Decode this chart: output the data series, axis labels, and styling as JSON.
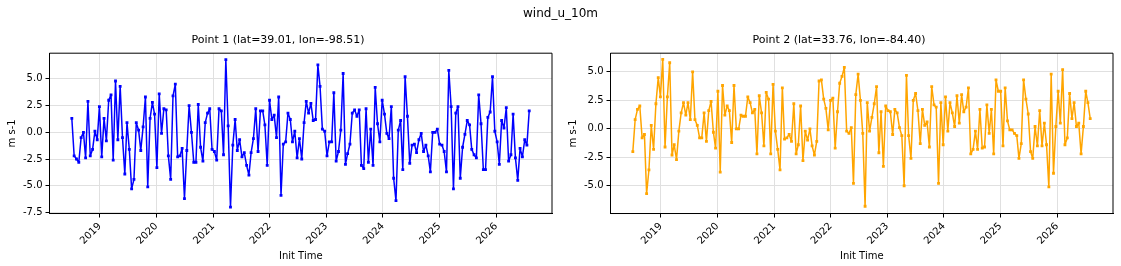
{
  "chart_data": [
    {
      "type": "line",
      "title": "Point 1 (lat=39.01, lon=-98.51)",
      "xlabel": "Init Time",
      "ylabel": "m s-1",
      "annotations": [
        "wind_u_10m"
      ],
      "grid": true,
      "legend": false,
      "marker": "square",
      "line_style": "solid",
      "xlim": [
        "2018-02-10",
        "2026-12-28"
      ],
      "xticks": [
        {
          "value": "2019",
          "label": "2019"
        },
        {
          "value": "2020",
          "label": "2020"
        },
        {
          "value": "2021",
          "label": "2021"
        },
        {
          "value": "2022",
          "label": "2022"
        },
        {
          "value": "2023",
          "label": "2023"
        },
        {
          "value": "2024",
          "label": "2024"
        },
        {
          "value": "2025",
          "label": "2025"
        },
        {
          "value": "2026",
          "label": "2026"
        }
      ],
      "ylim": [
        -7.6,
        7.4
      ],
      "yticks": [
        {
          "value": -7.5,
          "label": "-7.5"
        },
        {
          "value": -5,
          "label": "-5.0"
        },
        {
          "value": -2.5,
          "label": "-2.5"
        },
        {
          "value": 0,
          "label": "0.0"
        },
        {
          "value": 2.5,
          "label": "2.5"
        },
        {
          "value": 5,
          "label": "5.0"
        }
      ],
      "x": [
        "2018-07-04",
        "2018-07-19",
        "2018-08-03",
        "2018-08-18",
        "2018-09-02",
        "2018-09-17",
        "2018-10-01",
        "2018-10-16",
        "2018-10-31",
        "2018-11-15",
        "2018-11-30",
        "2018-12-15",
        "2018-12-29",
        "2019-01-13",
        "2019-01-28",
        "2019-02-12",
        "2019-02-27",
        "2019-03-14",
        "2019-03-28",
        "2019-04-12",
        "2019-04-27",
        "2019-05-12",
        "2019-05-27",
        "2019-06-11",
        "2019-06-25",
        "2019-07-10",
        "2019-07-25",
        "2019-08-09",
        "2019-08-24",
        "2019-09-08",
        "2019-09-22",
        "2019-10-07",
        "2019-10-22",
        "2019-11-06",
        "2019-11-21",
        "2019-12-06",
        "2019-12-20",
        "2020-01-04",
        "2020-01-19",
        "2020-02-03",
        "2020-02-18",
        "2020-03-04",
        "2020-03-18",
        "2020-04-02",
        "2020-04-17",
        "2020-05-02",
        "2020-05-17",
        "2020-06-01",
        "2020-06-15",
        "2020-06-30",
        "2020-07-15",
        "2020-07-30",
        "2020-08-14",
        "2020-08-29",
        "2020-09-12",
        "2020-09-27",
        "2020-10-12",
        "2020-10-27",
        "2020-11-11",
        "2020-11-26",
        "2020-12-10",
        "2020-12-25",
        "2021-01-09",
        "2021-01-24",
        "2021-02-08",
        "2021-02-23",
        "2021-03-09",
        "2021-03-24",
        "2021-04-08",
        "2021-04-23",
        "2021-05-08",
        "2021-05-23",
        "2021-06-06",
        "2021-06-21",
        "2021-07-06",
        "2021-07-21",
        "2021-08-05",
        "2021-08-20",
        "2021-09-03",
        "2021-09-18",
        "2021-10-03",
        "2021-10-18",
        "2021-11-02",
        "2021-11-17",
        "2021-12-01",
        "2021-12-16",
        "2021-12-31",
        "2022-01-15",
        "2022-01-30",
        "2022-02-14",
        "2022-02-28",
        "2022-03-15",
        "2022-03-30",
        "2022-04-14",
        "2022-04-29",
        "2022-05-14",
        "2022-05-28",
        "2022-06-12",
        "2022-06-27",
        "2022-07-12",
        "2022-07-27",
        "2022-08-11",
        "2022-08-25",
        "2022-09-09",
        "2022-09-24",
        "2022-10-09",
        "2022-10-24",
        "2022-11-08",
        "2022-11-22",
        "2022-12-07",
        "2022-12-22",
        "2023-01-06",
        "2023-01-21",
        "2023-02-05",
        "2023-02-19",
        "2023-03-06",
        "2023-03-21",
        "2023-04-05",
        "2023-04-20",
        "2023-05-05",
        "2023-05-19",
        "2023-06-03",
        "2023-06-18",
        "2023-07-03",
        "2023-07-18",
        "2023-08-02",
        "2023-08-16",
        "2023-08-31",
        "2023-09-15",
        "2023-09-30",
        "2023-10-15",
        "2023-10-30",
        "2023-11-13",
        "2023-11-28",
        "2023-12-13",
        "2023-12-28",
        "2024-01-12",
        "2024-01-27",
        "2024-02-10",
        "2024-02-25",
        "2024-03-11",
        "2024-03-26",
        "2024-04-10",
        "2024-04-25",
        "2024-05-09",
        "2024-05-24",
        "2024-06-08",
        "2024-06-23",
        "2024-07-08",
        "2024-07-23",
        "2024-08-06",
        "2024-08-21",
        "2024-09-05",
        "2024-09-20",
        "2024-10-05",
        "2024-10-20",
        "2024-11-03",
        "2024-11-18",
        "2024-12-03",
        "2024-12-18",
        "2025-01-02",
        "2025-01-17",
        "2025-01-31",
        "2025-02-15",
        "2025-03-02",
        "2025-03-17",
        "2025-04-01",
        "2025-04-16",
        "2025-04-30",
        "2025-05-15",
        "2025-05-30",
        "2025-06-14",
        "2025-06-29",
        "2025-07-14",
        "2025-07-28",
        "2025-08-12",
        "2025-08-27",
        "2025-09-11",
        "2025-09-26",
        "2025-10-11",
        "2025-10-25",
        "2025-11-09",
        "2025-11-24",
        "2025-12-09",
        "2025-12-24",
        "2026-01-08",
        "2026-01-22",
        "2026-02-06",
        "2026-02-21",
        "2026-03-08",
        "2026-03-23",
        "2026-04-07",
        "2026-04-21",
        "2026-05-06",
        "2026-05-21",
        "2026-06-05",
        "2026-06-20",
        "2026-07-05",
        "2026-07-19",
        "2026-08-03"
      ],
      "series": [
        {
          "color": "#0000ff",
          "values": [
            1.3,
            -2.2,
            -2.5,
            -2.8,
            -0.5,
            0,
            -2.4,
            2.9,
            -2.2,
            -1.6,
            0.1,
            -0.7,
            2.4,
            -2.3,
            1.3,
            -0.8,
            3.0,
            3.5,
            -2.6,
            4.8,
            -0.7,
            4.3,
            -0.5,
            -3.9,
            0.9,
            -1.6,
            -5.3,
            -4.4,
            0.9,
            0.2,
            -1.7,
            0.5,
            3.3,
            -5.1,
            1.3,
            2.8,
            1.7,
            -3.3,
            3.6,
            -0.1,
            2.2,
            2.1,
            -2.2,
            -4.4,
            3.4,
            4.5,
            -2.3,
            -2.2,
            -1.5,
            -6.2,
            -1.7,
            2.5,
            0,
            -2.8,
            -2.8,
            2.6,
            -1.4,
            -2.7,
            0.9,
            1.8,
            2.2,
            -1.6,
            -1.8,
            -2.6,
            2.2,
            2.0,
            -2.1,
            6.8,
            0.6,
            -7.0,
            -1.2,
            1.2,
            -1.7,
            -0.7,
            -2.3,
            -1.9,
            -3.1,
            -4.0,
            -1.9,
            -0.6,
            2.2,
            -1.8,
            2.0,
            2.0,
            0.7,
            -3.1,
            3.0,
            1.2,
            1.6,
            -0.5,
            3.3,
            -5.9,
            -1.1,
            -0.9,
            1.8,
            1.2,
            -0.9,
            0.1,
            -2.4,
            -0.6,
            -2.5,
            0.9,
            2.9,
            1.8,
            2.7,
            1.1,
            1.2,
            6.3,
            4.3,
            0.3,
            0.1,
            -2.2,
            -0.9,
            -0.9,
            3.7,
            -2.7,
            -1.8,
            0.2,
            5.5,
            -3.0,
            -2.0,
            -1.1,
            1.8,
            2.1,
            1.5,
            2.1,
            -3.1,
            -3.4,
            2.2,
            -2.8,
            0.3,
            -3.1,
            4.2,
            0.8,
            -0.9,
            3.0,
            1.7,
            -0.1,
            -0.6,
            2.4,
            -4.3,
            -6.4,
            0.2,
            1.1,
            -3.5,
            5.2,
            1.5,
            -2.9,
            -1.2,
            -1.1,
            -1.9,
            -0.7,
            -0.1,
            -1.8,
            -1.2,
            -2.2,
            -3.7,
            0,
            0,
            0.3,
            -1.1,
            -1.2,
            -1.8,
            -3.7,
            5.8,
            2.4,
            -5.3,
            1.8,
            2.4,
            -4.3,
            -1.4,
            -0.2,
            1.1,
            0.7,
            -1.6,
            -2.1,
            -2.4,
            3.5,
            0.8,
            -3.5,
            -3.5,
            1.4,
            1.9,
            5.2,
            0.1,
            -0.9,
            -3.0,
            1.1,
            0.4,
            2.3,
            -2.7,
            -2.1,
            1.7,
            -2.4,
            -4.5,
            -1.5,
            -2.3,
            -0.7,
            -1.2,
            2.0
          ]
        }
      ]
    },
    {
      "type": "line",
      "title": "Point 2 (lat=33.76, lon=-84.40)",
      "xlabel": "Init Time",
      "ylabel": "m s-1",
      "grid": true,
      "legend": false,
      "marker": "square",
      "line_style": "solid",
      "xlim": [
        "2018-02-10",
        "2026-12-28"
      ],
      "xticks": [
        {
          "value": "2019",
          "label": "2019"
        },
        {
          "value": "2020",
          "label": "2020"
        },
        {
          "value": "2021",
          "label": "2021"
        },
        {
          "value": "2022",
          "label": "2022"
        },
        {
          "value": "2023",
          "label": "2023"
        },
        {
          "value": "2024",
          "label": "2024"
        },
        {
          "value": "2025",
          "label": "2025"
        },
        {
          "value": "2026",
          "label": "2026"
        }
      ],
      "ylim": [
        -7.44,
        6.64
      ],
      "yticks": [
        {
          "value": -5,
          "label": "-5.0"
        },
        {
          "value": -2.5,
          "label": "-2.5"
        },
        {
          "value": 0,
          "label": "0.0"
        },
        {
          "value": 2.5,
          "label": "2.5"
        },
        {
          "value": 5,
          "label": "5.0"
        }
      ],
      "x": [
        "2018-07-04",
        "2018-07-19",
        "2018-08-03",
        "2018-08-18",
        "2018-09-02",
        "2018-09-17",
        "2018-10-01",
        "2018-10-16",
        "2018-10-31",
        "2018-11-15",
        "2018-11-30",
        "2018-12-15",
        "2018-12-29",
        "2019-01-13",
        "2019-01-28",
        "2019-02-12",
        "2019-02-27",
        "2019-03-14",
        "2019-03-28",
        "2019-04-12",
        "2019-04-27",
        "2019-05-12",
        "2019-05-27",
        "2019-06-11",
        "2019-06-25",
        "2019-07-10",
        "2019-07-25",
        "2019-08-09",
        "2019-08-24",
        "2019-09-08",
        "2019-09-22",
        "2019-10-07",
        "2019-10-22",
        "2019-11-06",
        "2019-11-21",
        "2019-12-06",
        "2019-12-20",
        "2020-01-04",
        "2020-01-19",
        "2020-02-03",
        "2020-02-18",
        "2020-03-04",
        "2020-03-18",
        "2020-04-02",
        "2020-04-17",
        "2020-05-02",
        "2020-05-17",
        "2020-06-01",
        "2020-06-15",
        "2020-06-30",
        "2020-07-15",
        "2020-07-30",
        "2020-08-14",
        "2020-08-29",
        "2020-09-12",
        "2020-09-27",
        "2020-10-12",
        "2020-10-27",
        "2020-11-11",
        "2020-11-26",
        "2020-12-10",
        "2020-12-25",
        "2021-01-09",
        "2021-01-24",
        "2021-02-08",
        "2021-02-23",
        "2021-03-09",
        "2021-03-24",
        "2021-04-08",
        "2021-04-23",
        "2021-05-08",
        "2021-05-23",
        "2021-06-06",
        "2021-06-21",
        "2021-07-06",
        "2021-07-21",
        "2021-08-05",
        "2021-08-20",
        "2021-09-03",
        "2021-09-18",
        "2021-10-03",
        "2021-10-18",
        "2021-11-02",
        "2021-11-17",
        "2021-12-01",
        "2021-12-16",
        "2021-12-31",
        "2022-01-15",
        "2022-01-30",
        "2022-02-14",
        "2022-02-28",
        "2022-03-15",
        "2022-03-30",
        "2022-04-14",
        "2022-04-29",
        "2022-05-14",
        "2022-05-28",
        "2022-06-12",
        "2022-06-27",
        "2022-07-12",
        "2022-07-27",
        "2022-08-11",
        "2022-08-25",
        "2022-09-09",
        "2022-09-24",
        "2022-10-09",
        "2022-10-24",
        "2022-11-08",
        "2022-11-22",
        "2022-12-07",
        "2022-12-22",
        "2023-01-06",
        "2023-01-21",
        "2023-02-05",
        "2023-02-19",
        "2023-03-06",
        "2023-03-21",
        "2023-04-05",
        "2023-04-20",
        "2023-05-05",
        "2023-05-19",
        "2023-06-03",
        "2023-06-18",
        "2023-07-03",
        "2023-07-18",
        "2023-08-02",
        "2023-08-16",
        "2023-08-31",
        "2023-09-15",
        "2023-09-30",
        "2023-10-15",
        "2023-10-30",
        "2023-11-13",
        "2023-11-28",
        "2023-12-13",
        "2023-12-28",
        "2024-01-12",
        "2024-01-27",
        "2024-02-10",
        "2024-02-25",
        "2024-03-11",
        "2024-03-26",
        "2024-04-10",
        "2024-04-25",
        "2024-05-09",
        "2024-05-24",
        "2024-06-08",
        "2024-06-23",
        "2024-07-08",
        "2024-07-23",
        "2024-08-06",
        "2024-08-21",
        "2024-09-05",
        "2024-09-20",
        "2024-10-05",
        "2024-10-20",
        "2024-11-03",
        "2024-11-18",
        "2024-12-03",
        "2024-12-18",
        "2025-01-02",
        "2025-01-17",
        "2025-01-31",
        "2025-02-15",
        "2025-03-02",
        "2025-03-17",
        "2025-04-01",
        "2025-04-16",
        "2025-04-30",
        "2025-05-15",
        "2025-05-30",
        "2025-06-14",
        "2025-06-29",
        "2025-07-14",
        "2025-07-28",
        "2025-08-12",
        "2025-08-27",
        "2025-09-11",
        "2025-09-26",
        "2025-10-11",
        "2025-10-25",
        "2025-11-09",
        "2025-11-24",
        "2025-12-09",
        "2025-12-24",
        "2026-01-08",
        "2026-01-22",
        "2026-02-06",
        "2026-02-21",
        "2026-03-08",
        "2026-03-23",
        "2026-04-07",
        "2026-04-21",
        "2026-05-06",
        "2026-05-21",
        "2026-06-05",
        "2026-06-20",
        "2026-07-05",
        "2026-07-19",
        "2026-08-03"
      ],
      "series": [
        {
          "color": "#ffa500",
          "values": [
            -2.0,
            0.8,
            1.7,
            2.0,
            -0.8,
            -0.5,
            -5.7,
            -3.6,
            0.3,
            -1.8,
            2.2,
            4.5,
            2.8,
            6.1,
            -1.6,
            2.8,
            5.8,
            -2.3,
            -1.4,
            -2.7,
            -0.2,
            1.4,
            2.3,
            1.2,
            2.3,
            0.8,
            5.0,
            0.8,
            0.3,
            -0.8,
            -0.8,
            1.4,
            -1.1,
            1.6,
            2.4,
            -0.3,
            -1.7,
            3.3,
            -3.8,
            3.8,
            1.2,
            2.0,
            1.6,
            -1.2,
            3.8,
            0,
            0,
            1.2,
            1.1,
            1.1,
            2.8,
            2.3,
            1.4,
            1.7,
            -2.2,
            2.9,
            1.4,
            -1.5,
            3.2,
            2.6,
            -2.2,
            3.9,
            -0.2,
            -1.8,
            -3.6,
            3.6,
            -0.9,
            -0.8,
            -0.5,
            -1.1,
            2.2,
            -2.2,
            -1.4,
            2.0,
            -2.8,
            -0.2,
            -1.0,
            0,
            -1.5,
            -2.3,
            -1.1,
            4.2,
            4.3,
            2.6,
            1.8,
            -0.1,
            2.5,
            2.7,
            -1.7,
            1.5,
            4.0,
            4.6,
            5.4,
            -0.2,
            -0.4,
            0.1,
            -4.8,
            3.0,
            4.8,
            2.5,
            -0.4,
            -6.8,
            2.3,
            -0.2,
            1.0,
            2.2,
            3.7,
            -2.1,
            1.5,
            -3.3,
            2.0,
            1.6,
            1.5,
            -0.5,
            1.7,
            1.4,
            0.1,
            -0.6,
            -5.0,
            4.7,
            -0.6,
            -2.6,
            2.5,
            3.1,
            1.6,
            -1.3,
            1.7,
            0.3,
            0.6,
            -1.6,
            3.7,
            2.1,
            1.9,
            -4.8,
            2.3,
            -1.4,
            2.8,
            -0.2,
            2.3,
            1.4,
            0.2,
            2.9,
            0.5,
            3.0,
            1.5,
            1.9,
            3.6,
            -2.2,
            -1.8,
            -0.2,
            -1.8,
            1.7,
            -1.7,
            -1.6,
            2.1,
            -0.4,
            1.7,
            -2.2,
            4.3,
            3.3,
            3.3,
            -1.5,
            3.6,
            0.7,
            -0.1,
            -0.1,
            -0.4,
            -0.6,
            -2.6,
            -1.3,
            4.3,
            2.6,
            1.3,
            -2.0,
            -2.6,
            0.2,
            -1.5,
            1.6,
            -1.5,
            0.5,
            -1.4,
            -5.1,
            4.8,
            -3.9,
            0.2,
            3.3,
            0.5,
            5.2,
            -1.4,
            -0.8,
            3.1,
            0.9,
            2.3,
            0.2,
            0.5,
            -2.2,
            0.2,
            3.3,
            2.3,
            0.9
          ]
        }
      ]
    }
  ]
}
